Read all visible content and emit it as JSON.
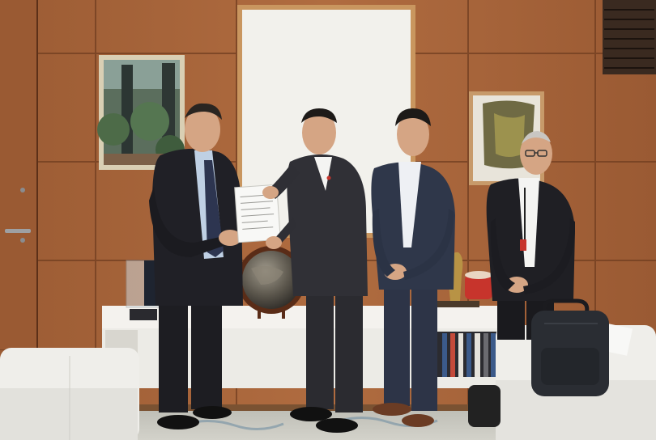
{
  "photo": {
    "colors": {
      "wall_wood": "#a8663c",
      "wall_wood_dark": "#8a4f2c",
      "panel_seam": "#6e3c1f",
      "whiteboard": "#f2f1ec",
      "board_frame": "#c9965f",
      "cabinet": "#f4f2ee",
      "sofa": "#efeeea",
      "carpet": "#c9c9c1",
      "suit_dark": "#1d1d22",
      "suit_navy": "#2d3447",
      "shirt_white": "#f4f4f2",
      "skin": "#d5a584"
    },
    "subjects": [
      {
        "name": "man-left",
        "suit": "dark",
        "tie": "navy-striped"
      },
      {
        "name": "man-center-left",
        "suit": "charcoal",
        "tie": "none"
      },
      {
        "name": "man-center-right",
        "suit": "navy-pinstripe",
        "tie": "none"
      },
      {
        "name": "man-right",
        "suit": "black",
        "tie": "none"
      }
    ]
  }
}
